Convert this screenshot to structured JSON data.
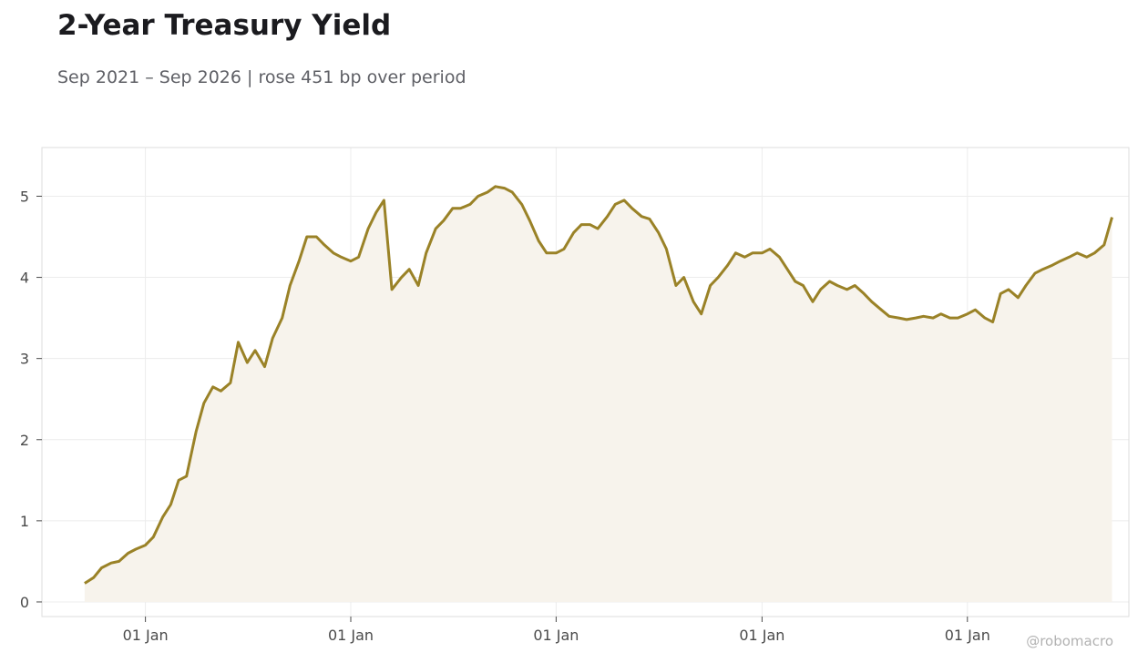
{
  "header": {
    "title": "2-Year Treasury Yield",
    "subtitle": "Sep 2021 – Sep 2026 | rose 451 bp over period"
  },
  "watermark": "@robomacro",
  "colors": {
    "line": "#9a8227",
    "fill": "#f7f3ec",
    "grid": "#ececec",
    "frame": "#dcdcdc",
    "tick_text": "#4a4a4a"
  },
  "chart_data": {
    "type": "area",
    "title": "2-Year Treasury Yield",
    "subtitle": "Sep 2021 – Sep 2026 | rose 451 bp over period",
    "xlabel": "",
    "ylabel": "",
    "xlim": [
      "2021-07-01",
      "2026-10-15"
    ],
    "ylim": [
      -0.18,
      5.6
    ],
    "grid": true,
    "legend": "none",
    "y_ticks": [
      0,
      1,
      2,
      3,
      4,
      5
    ],
    "x_ticks": [
      {
        "date": "2022-01-01",
        "label": "01 Jan"
      },
      {
        "date": "2023-01-01",
        "label": "01 Jan"
      },
      {
        "date": "2024-01-01",
        "label": "01 Jan"
      },
      {
        "date": "2025-01-01",
        "label": "01 Jan"
      },
      {
        "date": "2026-01-01",
        "label": "01 Jan"
      }
    ],
    "series": [
      {
        "x": [
          "2021-09-15",
          "2021-10-01",
          "2021-10-15",
          "2021-11-01",
          "2021-11-15",
          "2021-12-01",
          "2021-12-15",
          "2022-01-01",
          "2022-01-15",
          "2022-02-01",
          "2022-02-15",
          "2022-03-01",
          "2022-03-15",
          "2022-04-01",
          "2022-04-15",
          "2022-05-01",
          "2022-05-15",
          "2022-06-01",
          "2022-06-15",
          "2022-07-01",
          "2022-07-15",
          "2022-08-01",
          "2022-08-15",
          "2022-09-01",
          "2022-09-15",
          "2022-10-01",
          "2022-10-15",
          "2022-11-01",
          "2022-11-15",
          "2022-12-01",
          "2022-12-15",
          "2023-01-01",
          "2023-01-15",
          "2023-02-01",
          "2023-02-15",
          "2023-03-01",
          "2023-03-15",
          "2023-04-01",
          "2023-04-15",
          "2023-05-01",
          "2023-05-15",
          "2023-06-01",
          "2023-06-15",
          "2023-07-01",
          "2023-07-15",
          "2023-08-01",
          "2023-08-15",
          "2023-09-01",
          "2023-09-15",
          "2023-10-01",
          "2023-10-15",
          "2023-11-01",
          "2023-11-15",
          "2023-12-01",
          "2023-12-15",
          "2024-01-01",
          "2024-01-15",
          "2024-02-01",
          "2024-02-15",
          "2024-03-01",
          "2024-03-15",
          "2024-04-01",
          "2024-04-15",
          "2024-05-01",
          "2024-05-15",
          "2024-06-01",
          "2024-06-15",
          "2024-07-01",
          "2024-07-15",
          "2024-08-01",
          "2024-08-15",
          "2024-09-01",
          "2024-09-15",
          "2024-10-01",
          "2024-10-15",
          "2024-11-01",
          "2024-11-15",
          "2024-12-01",
          "2024-12-15",
          "2025-01-01",
          "2025-01-15",
          "2025-02-01",
          "2025-02-15",
          "2025-03-01",
          "2025-03-15",
          "2025-04-01",
          "2025-04-15",
          "2025-05-01",
          "2025-05-15",
          "2025-06-01",
          "2025-06-15",
          "2025-07-01",
          "2025-07-15",
          "2025-08-01",
          "2025-08-15",
          "2025-09-01",
          "2025-09-15",
          "2025-10-01",
          "2025-10-15",
          "2025-11-01",
          "2025-11-15",
          "2025-12-01",
          "2025-12-15",
          "2026-01-01",
          "2026-01-15",
          "2026-02-01",
          "2026-02-15",
          "2026-03-01",
          "2026-03-15",
          "2026-04-01",
          "2026-04-15",
          "2026-05-01",
          "2026-05-15",
          "2026-06-01",
          "2026-06-15",
          "2026-07-01",
          "2026-07-15",
          "2026-08-01",
          "2026-08-15",
          "2026-09-01",
          "2026-09-15"
        ],
        "y": [
          0.23,
          0.3,
          0.42,
          0.48,
          0.5,
          0.6,
          0.65,
          0.7,
          0.8,
          1.05,
          1.2,
          1.5,
          1.55,
          2.1,
          2.45,
          2.65,
          2.6,
          2.7,
          3.2,
          2.95,
          3.1,
          2.9,
          3.25,
          3.5,
          3.9,
          4.2,
          4.5,
          4.5,
          4.4,
          4.3,
          4.25,
          4.2,
          4.25,
          4.6,
          4.8,
          4.95,
          3.85,
          4.0,
          4.1,
          3.9,
          4.3,
          4.6,
          4.7,
          4.85,
          4.85,
          4.9,
          5.0,
          5.05,
          5.12,
          5.1,
          5.05,
          4.9,
          4.7,
          4.45,
          4.3,
          4.3,
          4.35,
          4.55,
          4.65,
          4.65,
          4.6,
          4.75,
          4.9,
          4.95,
          4.85,
          4.75,
          4.72,
          4.55,
          4.35,
          3.9,
          4.0,
          3.7,
          3.55,
          3.9,
          4.0,
          4.15,
          4.3,
          4.25,
          4.3,
          4.3,
          4.35,
          4.25,
          4.1,
          3.95,
          3.9,
          3.7,
          3.85,
          3.95,
          3.9,
          3.85,
          3.9,
          3.8,
          3.7,
          3.6,
          3.52,
          3.5,
          3.48,
          3.5,
          3.52,
          3.5,
          3.55,
          3.5,
          3.5,
          3.55,
          3.6,
          3.5,
          3.45,
          3.8,
          3.85,
          3.75,
          3.9,
          4.05,
          4.1,
          4.15,
          4.2,
          4.25,
          4.3,
          4.25,
          4.3,
          4.4,
          4.74
        ]
      }
    ]
  }
}
